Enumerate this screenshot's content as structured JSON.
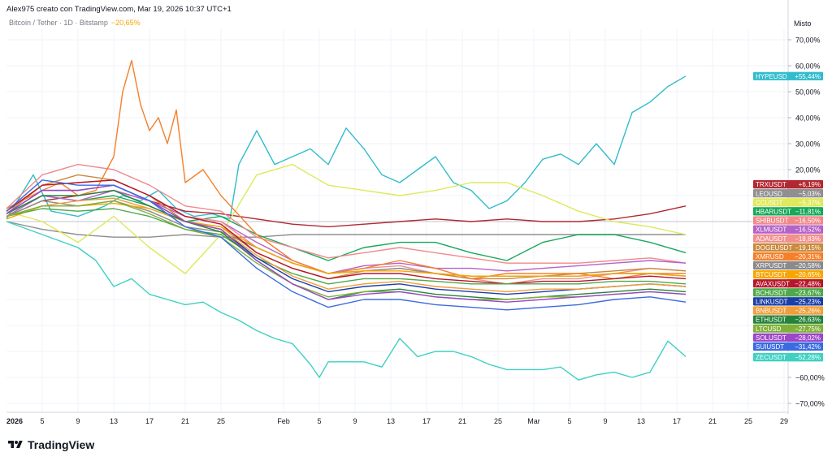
{
  "header": {
    "author_line": "Alex975 creato con TradingView.com, Mar 19, 2026 10:37 UTC+1",
    "symbol_line": "Bitcoin / Tether · 1D · Bitstamp",
    "symbol_change": "−20,65%"
  },
  "scale_mode": "Misto",
  "brand": {
    "name": "TradingView",
    "logo_icon": "tradingview-logo-icon"
  },
  "chart_data": {
    "type": "line",
    "title": "Bitcoin / Tether · 1D · Bitstamp",
    "ylabel": "",
    "xlabel": "",
    "y_unit": "%",
    "ylim": [
      -74,
      78
    ],
    "y_ticks": [
      {
        "value": 70,
        "label": "70,00%"
      },
      {
        "value": 60,
        "label": "60,00%"
      },
      {
        "value": 50,
        "label": "50,00%"
      },
      {
        "value": 40,
        "label": "40,00%"
      },
      {
        "value": 30,
        "label": "30,00%"
      },
      {
        "value": 20,
        "label": "20,00%"
      },
      {
        "value": -60,
        "label": "−60,00%"
      },
      {
        "value": -70,
        "label": "−70,00%"
      }
    ],
    "x_range": [
      0,
      78
    ],
    "x_ticks": [
      {
        "day": 0,
        "label": "2026"
      },
      {
        "day": 4,
        "label": "5"
      },
      {
        "day": 8,
        "label": "9"
      },
      {
        "day": 12,
        "label": "13"
      },
      {
        "day": 16,
        "label": "17"
      },
      {
        "day": 20,
        "label": "21"
      },
      {
        "day": 24,
        "label": "25"
      },
      {
        "day": 31,
        "label": "Feb"
      },
      {
        "day": 35,
        "label": "5"
      },
      {
        "day": 39,
        "label": "9"
      },
      {
        "day": 43,
        "label": "13"
      },
      {
        "day": 47,
        "label": "17"
      },
      {
        "day": 51,
        "label": "21"
      },
      {
        "day": 55,
        "label": "25"
      },
      {
        "day": 59,
        "label": "Mar"
      },
      {
        "day": 63,
        "label": "5"
      },
      {
        "day": 67,
        "label": "9"
      },
      {
        "day": 71,
        "label": "13"
      },
      {
        "day": 75,
        "label": "17"
      },
      {
        "day": 79,
        "label": "21"
      },
      {
        "day": 83,
        "label": "25"
      },
      {
        "day": 87,
        "label": "29"
      }
    ],
    "zero_line": 0,
    "grid": true,
    "legend": "right",
    "series": [
      {
        "name": "HYPEUSD",
        "value_label": "+55,44%",
        "color": "#31bccb",
        "x": [
          0,
          3,
          5,
          8,
          11,
          13,
          15,
          17,
          19,
          21,
          23,
          25,
          26,
          28,
          30,
          32,
          34,
          36,
          38,
          40,
          42,
          44,
          46,
          48,
          50,
          52,
          54,
          56,
          58,
          60,
          62,
          64,
          66,
          68,
          70,
          72,
          74,
          76
        ],
        "y": [
          1,
          18,
          4,
          2,
          6,
          10,
          8,
          12,
          5,
          2,
          3,
          1,
          22,
          35,
          22,
          25,
          28,
          22,
          36,
          28,
          18,
          15,
          20,
          25,
          15,
          12,
          5,
          8,
          15,
          24,
          26,
          22,
          30,
          22,
          42,
          46,
          52,
          56
        ]
      },
      {
        "name": "TRXUSDT",
        "value_label": "+6,19%",
        "color": "#b22833",
        "x": [
          0,
          4,
          8,
          12,
          16,
          20,
          24,
          28,
          32,
          36,
          40,
          44,
          48,
          52,
          56,
          60,
          64,
          68,
          72,
          76
        ],
        "y": [
          2,
          8,
          10,
          12,
          8,
          4,
          3,
          1,
          -1,
          -2,
          -1,
          0,
          1,
          0,
          1,
          0,
          0,
          1,
          3,
          6
        ]
      },
      {
        "name": "LEOUSD",
        "value_label": "−5,03%",
        "color": "#8f8f8f",
        "x": [
          0,
          4,
          8,
          12,
          16,
          20,
          24,
          28,
          32,
          36,
          40,
          44,
          48,
          52,
          56,
          60,
          64,
          68,
          72,
          76
        ],
        "y": [
          0,
          -3,
          -5,
          -6,
          -6,
          -5,
          -6,
          -6,
          -5,
          -5,
          -5,
          -5,
          -5,
          -5,
          -5,
          -5,
          -5,
          -5,
          -5,
          -5
        ]
      },
      {
        "name": "CCUSDT",
        "value_label": "−5,37%",
        "color": "#dfe95a",
        "x": [
          0,
          4,
          8,
          12,
          16,
          20,
          24,
          28,
          32,
          36,
          40,
          44,
          48,
          52,
          56,
          60,
          64,
          68,
          72,
          76
        ],
        "y": [
          4,
          0,
          -8,
          2,
          -10,
          -20,
          -5,
          18,
          22,
          14,
          12,
          10,
          12,
          15,
          15,
          10,
          4,
          0,
          -2,
          -5
        ]
      },
      {
        "name": "HBARUSDT",
        "value_label": "−11,81%",
        "color": "#17a85a",
        "x": [
          0,
          4,
          8,
          12,
          16,
          20,
          24,
          28,
          32,
          36,
          40,
          44,
          48,
          52,
          56,
          60,
          64,
          68,
          72,
          76
        ],
        "y": [
          3,
          10,
          8,
          10,
          6,
          0,
          2,
          -5,
          -10,
          -15,
          -10,
          -8,
          -8,
          -12,
          -15,
          -8,
          -5,
          -5,
          -8,
          -12
        ]
      },
      {
        "name": "SHIBUSDT",
        "value_label": "−16,50%",
        "color": "#f08a8a",
        "x": [
          0,
          4,
          8,
          12,
          16,
          20,
          24,
          28,
          32,
          36,
          40,
          44,
          48,
          52,
          56,
          60,
          64,
          68,
          72,
          76
        ],
        "y": [
          5,
          18,
          22,
          20,
          14,
          6,
          4,
          -6,
          -10,
          -14,
          -12,
          -10,
          -12,
          -14,
          -16,
          -16,
          -16,
          -15,
          -14,
          -16
        ]
      },
      {
        "name": "XLMUSDT",
        "value_label": "−16,52%",
        "color": "#b463c9",
        "x": [
          0,
          4,
          8,
          12,
          16,
          20,
          24,
          28,
          32,
          36,
          40,
          44,
          48,
          52,
          56,
          60,
          64,
          68,
          72,
          76
        ],
        "y": [
          2,
          10,
          8,
          12,
          8,
          2,
          0,
          -8,
          -15,
          -20,
          -17,
          -16,
          -18,
          -18,
          -19,
          -18,
          -17,
          -16,
          -15,
          -16
        ]
      },
      {
        "name": "ADAUSDT",
        "value_label": "−18,83%",
        "color": "#f28f8f",
        "x": [
          0,
          4,
          8,
          12,
          16,
          20,
          24,
          28,
          32,
          36,
          40,
          44,
          48,
          52,
          56,
          60,
          64,
          68,
          72,
          76
        ],
        "y": [
          4,
          14,
          15,
          16,
          10,
          2,
          0,
          -10,
          -16,
          -20,
          -18,
          -17,
          -20,
          -22,
          -24,
          -22,
          -22,
          -20,
          -18,
          -19
        ]
      },
      {
        "name": "DOGEUSDT",
        "value_label": "−19,15%",
        "color": "#c98a3d",
        "x": [
          0,
          4,
          8,
          12,
          16,
          20,
          24,
          28,
          32,
          36,
          40,
          44,
          48,
          52,
          56,
          60,
          64,
          68,
          72,
          76
        ],
        "y": [
          3,
          14,
          18,
          16,
          10,
          0,
          -2,
          -12,
          -18,
          -22,
          -19,
          -18,
          -20,
          -22,
          -22,
          -21,
          -20,
          -19,
          -18,
          -19
        ]
      },
      {
        "name": "XMRUSD",
        "value_label": "−20,31%",
        "color": "#f4802b",
        "x": [
          0,
          4,
          6,
          8,
          10,
          12,
          13,
          14,
          15,
          16,
          17,
          18,
          19,
          20,
          22,
          24,
          28,
          32,
          36,
          40,
          44,
          48,
          52,
          56,
          60,
          64,
          68,
          72,
          76
        ],
        "y": [
          5,
          12,
          15,
          10,
          12,
          25,
          50,
          62,
          45,
          35,
          40,
          30,
          43,
          15,
          20,
          10,
          -5,
          -15,
          -20,
          -18,
          -15,
          -18,
          -22,
          -20,
          -20,
          -20,
          -22,
          -20,
          -20
        ]
      },
      {
        "name": "XRPUSDT",
        "value_label": "−20,58%",
        "color": "#8a8a8a",
        "x": [
          0,
          4,
          8,
          12,
          16,
          20,
          24,
          28,
          32,
          36,
          40,
          44,
          48,
          52,
          56,
          60,
          64,
          68,
          72,
          76
        ],
        "y": [
          2,
          8,
          6,
          8,
          4,
          -2,
          -4,
          -10,
          -16,
          -20,
          -19,
          -18,
          -20,
          -21,
          -21,
          -21,
          -21,
          -20,
          -20,
          -21
        ]
      },
      {
        "name": "BTCUSDT",
        "value_label": "−20,65%",
        "color": "#f7a600",
        "x": [
          0,
          4,
          8,
          12,
          16,
          20,
          24,
          28,
          32,
          36,
          40,
          44,
          48,
          52,
          56,
          60,
          64,
          68,
          72,
          76
        ],
        "y": [
          1,
          6,
          6,
          7,
          5,
          0,
          -2,
          -10,
          -16,
          -20,
          -19,
          -19,
          -20,
          -21,
          -21,
          -21,
          -21,
          -20,
          -20,
          -21
        ]
      },
      {
        "name": "AVAXUSDT",
        "value_label": "−22,48%",
        "color": "#b5172b",
        "x": [
          0,
          4,
          8,
          12,
          16,
          20,
          24,
          28,
          32,
          36,
          40,
          44,
          48,
          52,
          56,
          60,
          64,
          68,
          72,
          76
        ],
        "y": [
          4,
          14,
          15,
          16,
          10,
          2,
          -1,
          -12,
          -18,
          -22,
          -20,
          -20,
          -22,
          -23,
          -24,
          -23,
          -23,
          -22,
          -21,
          -22
        ]
      },
      {
        "name": "BCHUSDT",
        "value_label": "−23,67%",
        "color": "#4fa84a",
        "x": [
          0,
          4,
          8,
          12,
          16,
          20,
          24,
          28,
          32,
          36,
          40,
          44,
          48,
          52,
          56,
          60,
          64,
          68,
          72,
          76
        ],
        "y": [
          2,
          5,
          4,
          5,
          2,
          -3,
          -5,
          -14,
          -20,
          -24,
          -22,
          -22,
          -23,
          -24,
          -24,
          -24,
          -24,
          -23,
          -23,
          -24
        ]
      },
      {
        "name": "LINKUSDT",
        "value_label": "−25,23%",
        "color": "#1b3fa6",
        "x": [
          0,
          4,
          8,
          12,
          16,
          20,
          24,
          28,
          32,
          36,
          40,
          44,
          48,
          52,
          56,
          60,
          64,
          68,
          72,
          76
        ],
        "y": [
          3,
          12,
          12,
          14,
          8,
          0,
          -3,
          -14,
          -22,
          -27,
          -25,
          -24,
          -26,
          -27,
          -28,
          -27,
          -26,
          -25,
          -24,
          -25
        ]
      },
      {
        "name": "BNBUSDT",
        "value_label": "−25,26%",
        "color": "#f29d38",
        "x": [
          0,
          4,
          8,
          12,
          16,
          20,
          24,
          28,
          32,
          36,
          40,
          44,
          48,
          52,
          56,
          60,
          64,
          68,
          72,
          76
        ],
        "y": [
          2,
          6,
          8,
          9,
          5,
          0,
          -3,
          -13,
          -21,
          -26,
          -24,
          -23,
          -25,
          -26,
          -27,
          -26,
          -26,
          -25,
          -24,
          -25
        ]
      },
      {
        "name": "ETHUSDT",
        "value_label": "−26,63%",
        "color": "#26833c",
        "x": [
          0,
          4,
          8,
          12,
          16,
          20,
          24,
          28,
          32,
          36,
          40,
          44,
          48,
          52,
          56,
          60,
          64,
          68,
          72,
          76
        ],
        "y": [
          3,
          10,
          10,
          12,
          6,
          0,
          -4,
          -15,
          -24,
          -30,
          -27,
          -26,
          -28,
          -29,
          -30,
          -29,
          -28,
          -27,
          -26,
          -27
        ]
      },
      {
        "name": "LTCUSD",
        "value_label": "−27,75%",
        "color": "#7fb13a",
        "x": [
          0,
          4,
          8,
          12,
          16,
          20,
          24,
          28,
          32,
          36,
          40,
          44,
          48,
          52,
          56,
          60,
          64,
          68,
          72,
          76
        ],
        "y": [
          2,
          6,
          6,
          8,
          3,
          -3,
          -6,
          -16,
          -24,
          -29,
          -27,
          -27,
          -29,
          -30,
          -30,
          -29,
          -29,
          -28,
          -27,
          -28
        ]
      },
      {
        "name": "SOLUSDT",
        "value_label": "−28,02%",
        "color": "#9c47c8",
        "x": [
          0,
          4,
          8,
          12,
          16,
          20,
          24,
          28,
          32,
          36,
          40,
          44,
          48,
          52,
          56,
          60,
          64,
          68,
          72,
          76
        ],
        "y": [
          3,
          12,
          12,
          14,
          8,
          0,
          -3,
          -15,
          -24,
          -30,
          -28,
          -27,
          -29,
          -30,
          -31,
          -30,
          -29,
          -28,
          -27,
          -28
        ]
      },
      {
        "name": "SUIUSDT",
        "value_label": "−31,42%",
        "color": "#3b6be0",
        "x": [
          0,
          4,
          8,
          12,
          16,
          20,
          24,
          28,
          32,
          36,
          40,
          44,
          48,
          52,
          56,
          60,
          64,
          68,
          72,
          76
        ],
        "y": [
          4,
          16,
          14,
          14,
          8,
          -2,
          -6,
          -18,
          -27,
          -33,
          -30,
          -30,
          -32,
          -33,
          -34,
          -33,
          -32,
          -30,
          -29,
          -31
        ]
      },
      {
        "name": "ZECUSDT",
        "value_label": "−52,28%",
        "color": "#3dd1c2",
        "x": [
          0,
          4,
          8,
          10,
          12,
          14,
          16,
          18,
          20,
          22,
          24,
          26,
          28,
          30,
          32,
          34,
          35,
          36,
          38,
          40,
          42,
          44,
          46,
          48,
          50,
          52,
          54,
          56,
          58,
          60,
          62,
          64,
          66,
          68,
          70,
          72,
          74,
          76
        ],
        "y": [
          0,
          -5,
          -10,
          -15,
          -25,
          -22,
          -28,
          -30,
          -32,
          -31,
          -35,
          -38,
          -42,
          -45,
          -47,
          -55,
          -60,
          -54,
          -54,
          -54,
          -56,
          -45,
          -52,
          -50,
          -50,
          -52,
          -55,
          -57,
          -57,
          -57,
          -56,
          -61,
          -59,
          -58,
          -60,
          -58,
          -46,
          -52
        ]
      }
    ]
  }
}
